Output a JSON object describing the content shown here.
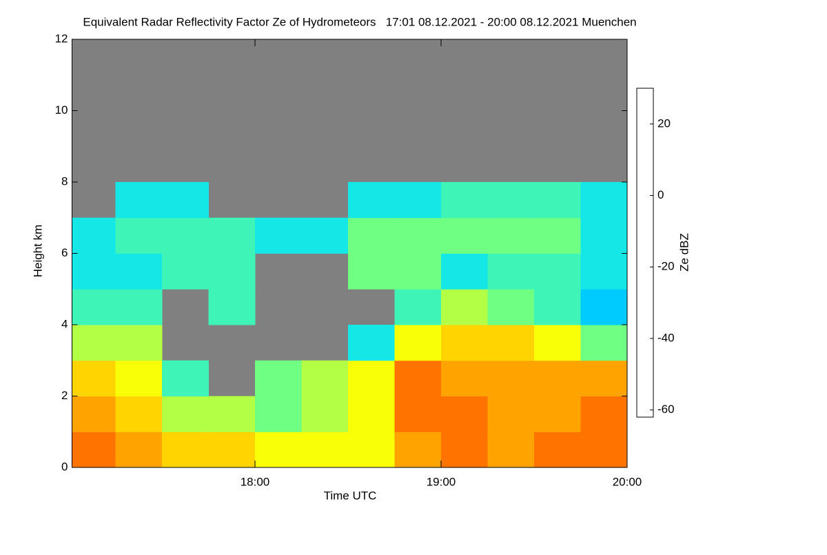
{
  "chart_data": {
    "type": "heatmap",
    "title": "Equivalent Radar Reflectivity Factor Ze of Hydrometeors   17:01 08.12.2021 - 20:00 08.12.2021 Muenchen",
    "xlabel": "Time UTC",
    "ylabel": "Height km",
    "zlabel": "Ze dBZ",
    "xlim": [
      17.0167,
      20.0
    ],
    "xticks": [
      {
        "value": 18,
        "label": "18:00"
      },
      {
        "value": 19,
        "label": "19:00"
      },
      {
        "value": 20,
        "label": "20:00"
      }
    ],
    "ylim": [
      0,
      12
    ],
    "yticks": [
      0,
      2,
      4,
      6,
      8,
      10,
      12
    ],
    "zlim": [
      -62,
      30
    ],
    "zticks": [
      -60,
      -40,
      -20,
      0,
      20
    ],
    "background": "#808080",
    "colorscale": [
      "#6e6e7a",
      "#1010d0",
      "#0080ff",
      "#00e0ff",
      "#60ff90",
      "#ffff00",
      "#ff9000",
      "#ff2000",
      "#a00000"
    ],
    "x_bins": [
      17.0167,
      17.25,
      17.5,
      17.75,
      18.0,
      18.25,
      18.5,
      18.75,
      19.0,
      19.25,
      19.5,
      19.75,
      20.0
    ],
    "y_bins": [
      0,
      1,
      2,
      3,
      4,
      5,
      6,
      7,
      8
    ],
    "z": [
      [
        10,
        5,
        0,
        0,
        -5,
        -5,
        -5,
        5,
        10,
        5,
        10,
        10
      ],
      [
        5,
        0,
        -10,
        -10,
        -15,
        -10,
        -5,
        10,
        10,
        5,
        5,
        10
      ],
      [
        0,
        -5,
        -20,
        null,
        -15,
        -10,
        -5,
        10,
        5,
        5,
        5,
        5
      ],
      [
        -10,
        -10,
        null,
        null,
        null,
        null,
        -25,
        -5,
        0,
        0,
        -5,
        -15
      ],
      [
        -20,
        -20,
        null,
        -20,
        null,
        null,
        null,
        -20,
        -10,
        -15,
        -20,
        -30
      ],
      [
        -25,
        -25,
        -20,
        -20,
        null,
        null,
        -15,
        -15,
        -25,
        -20,
        -20,
        -25
      ],
      [
        -25,
        -20,
        -20,
        -20,
        -25,
        -25,
        -15,
        -15,
        -15,
        -15,
        -15,
        -25
      ],
      [
        null,
        -25,
        -25,
        null,
        null,
        null,
        -25,
        -25,
        -20,
        -20,
        -20,
        -25
      ]
    ]
  }
}
